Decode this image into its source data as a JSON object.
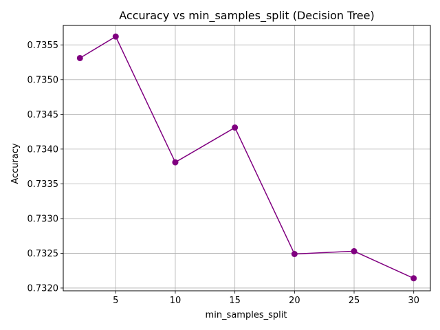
{
  "chart_data": {
    "type": "line",
    "title": "Accuracy vs min_samples_split (Decision Tree)",
    "xlabel": "min_samples_split",
    "ylabel": "Accuracy",
    "x": [
      2,
      5,
      10,
      15,
      20,
      25,
      30
    ],
    "series": [
      {
        "values": [
          0.73531,
          0.73562,
          0.73381,
          0.73431,
          0.73249,
          0.73253,
          0.73214
        ]
      }
    ],
    "xticks": [
      5,
      10,
      15,
      20,
      25,
      30
    ],
    "xtick_labels": [
      "5",
      "10",
      "15",
      "20",
      "25",
      "30"
    ],
    "yticks": [
      0.732,
      0.7325,
      0.733,
      0.7335,
      0.734,
      0.7345,
      0.735,
      0.7355
    ],
    "ytick_labels": [
      "0.7320",
      "0.7325",
      "0.7330",
      "0.7335",
      "0.7340",
      "0.7345",
      "0.7350",
      "0.7355"
    ],
    "xlim": [
      0.6,
      31.4
    ],
    "ylim": [
      0.73196,
      0.73578
    ],
    "grid": true,
    "line_color": "#800080",
    "marker": "circle"
  }
}
